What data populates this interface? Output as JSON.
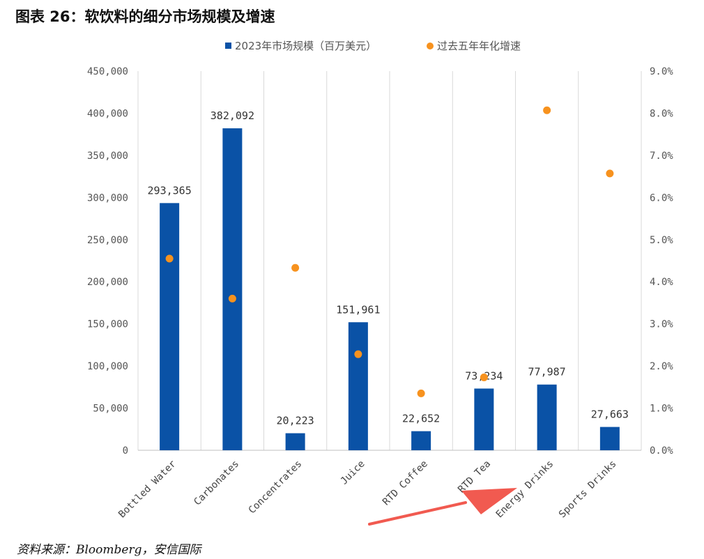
{
  "header": {
    "title": "图表 26：软饮料的细分市场规模及增速"
  },
  "footer": {
    "source": "资料来源：Bloomberg，安信国际"
  },
  "colors": {
    "bar": "#0a52a6",
    "dot": "#f7921e",
    "grid": "#d9d9d9",
    "arrow": "#f15a50"
  },
  "chart_data": {
    "type": "bar",
    "categories": [
      "Bottled Water",
      "Carbonates",
      "Concentrates",
      "Juice",
      "RTD Coffee",
      "RTD Tea",
      "Energy Drinks",
      "Sports Drinks"
    ],
    "series": [
      {
        "name": "2023年市场规模（百万美元）",
        "type": "bar",
        "axis": "left",
        "values": [
          293365,
          382092,
          20223,
          151961,
          22652,
          73234,
          77987,
          27663
        ],
        "labels": [
          "293,365",
          "382,092",
          "20,223",
          "151,961",
          "22,652",
          "73,234",
          "77,987",
          "27,663"
        ]
      },
      {
        "name": "过去五年年化增速",
        "type": "scatter",
        "axis": "right",
        "values": [
          4.55,
          3.6,
          4.33,
          2.28,
          1.35,
          1.73,
          8.07,
          6.57
        ]
      }
    ],
    "y_left": {
      "lim": [
        0,
        450000
      ],
      "ticks": [
        "0",
        "50,000",
        "100,000",
        "150,000",
        "200,000",
        "250,000",
        "300,000",
        "350,000",
        "400,000",
        "450,000"
      ]
    },
    "y_right": {
      "lim": [
        0,
        9
      ],
      "ticks": [
        "0.0%",
        "1.0%",
        "2.0%",
        "3.0%",
        "4.0%",
        "5.0%",
        "6.0%",
        "7.0%",
        "8.0%",
        "9.0%"
      ]
    },
    "legend": "top-center",
    "grid": "vertical-category-dividers",
    "annotation": {
      "type": "arrow",
      "points_to": "Energy Drinks"
    }
  }
}
